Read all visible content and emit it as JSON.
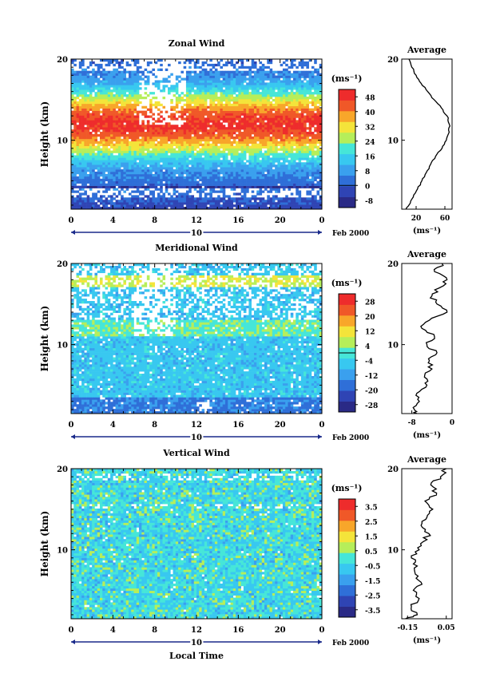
{
  "chart_data": [
    {
      "type": "heatmap",
      "title": "Zonal Wind",
      "ylabel": "Height (km)",
      "xlabel": "",
      "x_ticks": [
        "0",
        "4",
        "8",
        "12",
        "16",
        "20",
        "0"
      ],
      "y_ticks": [
        "10",
        "20"
      ],
      "xlim": [
        0,
        24
      ],
      "ylim": [
        1.5,
        20
      ],
      "date_label": "10",
      "date_suffix": "Feb 2000",
      "colorbar": {
        "unit": "(ms⁻¹)",
        "ticks": [
          "48",
          "40",
          "32",
          "24",
          "16",
          "8",
          "0",
          "-8"
        ],
        "min": -12,
        "max": 52,
        "zero_line": 0,
        "colors": [
          "#2a2a86",
          "#2f44b4",
          "#2f6fd8",
          "#3aa0ee",
          "#38c8f0",
          "#46e6d8",
          "#b6ee5a",
          "#f4e43a",
          "#f8a62a",
          "#f05828",
          "#ee2c2c"
        ]
      },
      "profile": {
        "title": "Average",
        "x_ticks": [
          "20",
          "60"
        ],
        "xlim": [
          0,
          70
        ],
        "xlabel": "(ms⁻¹)",
        "y_ticks": [
          "10",
          "20"
        ],
        "height_km": [
          1.5,
          2,
          3,
          4,
          5,
          6,
          7,
          8,
          9,
          10,
          11,
          12,
          13,
          14,
          15,
          16,
          17,
          18,
          19,
          20
        ],
        "values": [
          6,
          10,
          16,
          22,
          28,
          34,
          40,
          47,
          56,
          62,
          66,
          66,
          63,
          55,
          45,
          36,
          27,
          20,
          14,
          10
        ]
      }
    },
    {
      "type": "heatmap",
      "title": "Meridional Wind",
      "ylabel": "Height (km)",
      "xlabel": "",
      "x_ticks": [
        "0",
        "4",
        "8",
        "12",
        "16",
        "20",
        "0"
      ],
      "y_ticks": [
        "10",
        "20"
      ],
      "xlim": [
        0,
        24
      ],
      "ylim": [
        1.5,
        20
      ],
      "date_label": "10",
      "date_suffix": "Feb 2000",
      "colorbar": {
        "unit": "(ms⁻¹)",
        "ticks": [
          "28",
          "20",
          "12",
          "4",
          "-4",
          "-12",
          "-20",
          "-28"
        ],
        "min": -32,
        "max": 32,
        "zero_line": 0,
        "colors": [
          "#2a2a86",
          "#2f44b4",
          "#2f6fd8",
          "#3aa0ee",
          "#38c8f0",
          "#46e6d8",
          "#b6ee5a",
          "#f4e43a",
          "#f8a62a",
          "#f05828",
          "#ee2c2c"
        ]
      },
      "profile": {
        "title": "Average",
        "x_ticks": [
          "-8",
          "0"
        ],
        "xlim": [
          -10,
          0
        ],
        "xlabel": "(ms⁻¹)",
        "y_ticks": [
          "10",
          "20"
        ],
        "height_km": [
          1.5,
          2,
          3,
          4,
          5,
          6,
          7,
          8,
          9,
          10,
          11,
          12,
          13,
          14,
          15,
          16,
          17,
          18,
          19,
          20
        ],
        "values": [
          -7,
          -7.5,
          -6.5,
          -7,
          -5,
          -5.5,
          -4,
          -4.5,
          -3,
          -5,
          -3.5,
          -6,
          -4.5,
          -1,
          -3,
          -4,
          -2.5,
          -1,
          -3.5,
          -2
        ]
      }
    },
    {
      "type": "heatmap",
      "title": "Vertical Wind",
      "ylabel": "Height (km)",
      "xlabel": "Local Time",
      "x_ticks": [
        "0",
        "4",
        "8",
        "12",
        "16",
        "20",
        "0"
      ],
      "y_ticks": [
        "10",
        "20"
      ],
      "xlim": [
        0,
        24
      ],
      "ylim": [
        1.5,
        20
      ],
      "date_label": "10",
      "date_suffix": "Feb 2000",
      "colorbar": {
        "unit": "(ms⁻¹)",
        "ticks": [
          "3.5",
          "2.5",
          "1.5",
          "0.5",
          "-0.5",
          "-1.5",
          "-2.5",
          "-3.5"
        ],
        "min": -4,
        "max": 4,
        "zero_line": null,
        "colors": [
          "#2a2a86",
          "#2f44b4",
          "#2f6fd8",
          "#3aa0ee",
          "#38c8f0",
          "#46e6d8",
          "#b6ee5a",
          "#f4e43a",
          "#f8a62a",
          "#f05828",
          "#ee2c2c"
        ]
      },
      "profile": {
        "title": "Average",
        "x_ticks": [
          "-0.15",
          "0.05"
        ],
        "xlim": [
          -0.18,
          0.08
        ],
        "xlabel": "(ms⁻¹)",
        "y_ticks": [
          "10",
          "20"
        ],
        "height_km": [
          1.5,
          2,
          3,
          4,
          5,
          6,
          7,
          8,
          9,
          10,
          11,
          12,
          13,
          14,
          15,
          16,
          17,
          18,
          19,
          20
        ],
        "values": [
          -0.16,
          -0.1,
          -0.13,
          -0.09,
          -0.12,
          -0.08,
          -0.11,
          -0.1,
          -0.13,
          -0.09,
          -0.07,
          -0.04,
          -0.08,
          -0.05,
          -0.02,
          -0.06,
          0.0,
          -0.03,
          0.02,
          0.05
        ]
      }
    }
  ]
}
